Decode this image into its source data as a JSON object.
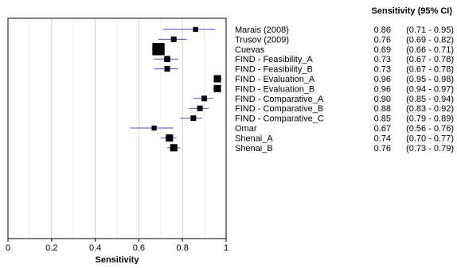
{
  "chart_data": {
    "type": "forest",
    "xlabel": "Sensitivity",
    "column_header": "Sensitivity (95% CI)",
    "xlim": [
      0,
      1
    ],
    "xticks": [
      "0",
      "0.2",
      "0.4",
      "0.6",
      "0.8",
      "1"
    ],
    "grid": "vertical",
    "studies": [
      {
        "name": "Marais (2008)",
        "estimate": 0.86,
        "ci_low": 0.71,
        "ci_high": 0.95,
        "estimate_text": "0.86",
        "ci_text": "(0.71 - 0.95)",
        "weight": 0.9
      },
      {
        "name": "Trusov (2009)",
        "estimate": 0.76,
        "ci_low": 0.69,
        "ci_high": 0.82,
        "estimate_text": "0.76",
        "ci_text": "(0.69 - 0.82)",
        "weight": 1.0
      },
      {
        "name": "Cuevas",
        "estimate": 0.69,
        "ci_low": 0.66,
        "ci_high": 0.71,
        "estimate_text": "0.69",
        "ci_text": "(0.66 - 0.71)",
        "weight": 2.2
      },
      {
        "name": "FIND - Feasibility_A",
        "estimate": 0.73,
        "ci_low": 0.67,
        "ci_high": 0.78,
        "estimate_text": "0.73",
        "ci_text": "(0.67 - 0.78)",
        "weight": 1.1
      },
      {
        "name": "FIND - Feasibility_B",
        "estimate": 0.73,
        "ci_low": 0.67,
        "ci_high": 0.78,
        "estimate_text": "0.73",
        "ci_text": "(0.67 - 0.78)",
        "weight": 1.0
      },
      {
        "name": "FIND - Evaluation_A",
        "estimate": 0.96,
        "ci_low": 0.95,
        "ci_high": 0.98,
        "estimate_text": "0.96",
        "ci_text": "(0.95 - 0.98)",
        "weight": 1.3
      },
      {
        "name": "FIND - Evaluation_B",
        "estimate": 0.96,
        "ci_low": 0.94,
        "ci_high": 0.97,
        "estimate_text": "0.96",
        "ci_text": "(0.94 - 0.97)",
        "weight": 1.3
      },
      {
        "name": "FIND - Comparative_A",
        "estimate": 0.9,
        "ci_low": 0.85,
        "ci_high": 0.94,
        "estimate_text": "0.90",
        "ci_text": "(0.85 - 0.94)",
        "weight": 1.0
      },
      {
        "name": "FIND - Comparative_B",
        "estimate": 0.88,
        "ci_low": 0.83,
        "ci_high": 0.92,
        "estimate_text": "0.88",
        "ci_text": "(0.83 - 0.92)",
        "weight": 1.0
      },
      {
        "name": "FIND - Comparative_C",
        "estimate": 0.85,
        "ci_low": 0.79,
        "ci_high": 0.89,
        "estimate_text": "0.85",
        "ci_text": "(0.79 - 0.89)",
        "weight": 1.0
      },
      {
        "name": "Omar",
        "estimate": 0.67,
        "ci_low": 0.56,
        "ci_high": 0.76,
        "estimate_text": "0.67",
        "ci_text": "(0.56 - 0.76)",
        "weight": 0.9
      },
      {
        "name": "Shenai_A",
        "estimate": 0.74,
        "ci_low": 0.7,
        "ci_high": 0.77,
        "estimate_text": "0.74",
        "ci_text": "(0.70 - 0.77)",
        "weight": 1.3
      },
      {
        "name": "Shenai_B",
        "estimate": 0.76,
        "ci_low": 0.73,
        "ci_high": 0.79,
        "estimate_text": "0.76",
        "ci_text": "(0.73 - 0.79)",
        "weight": 1.3
      }
    ],
    "colors": {
      "marker": "#000000",
      "ci_line": "#4a4ad8",
      "grid": "#d0d0d0",
      "frame": "#000000"
    }
  }
}
